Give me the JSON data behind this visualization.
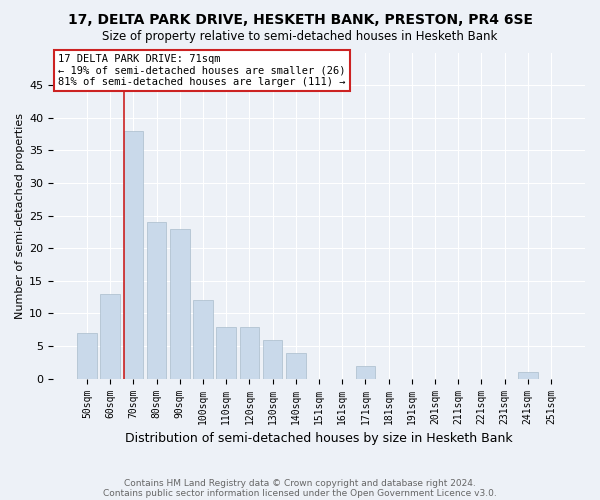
{
  "title": "17, DELTA PARK DRIVE, HESKETH BANK, PRESTON, PR4 6SE",
  "subtitle": "Size of property relative to semi-detached houses in Hesketh Bank",
  "xlabel": "Distribution of semi-detached houses by size in Hesketh Bank",
  "ylabel": "Number of semi-detached properties",
  "footnote1": "Contains HM Land Registry data © Crown copyright and database right 2024.",
  "footnote2": "Contains public sector information licensed under the Open Government Licence v3.0.",
  "bar_labels": [
    "50sqm",
    "60sqm",
    "70sqm",
    "80sqm",
    "90sqm",
    "100sqm",
    "110sqm",
    "120sqm",
    "130sqm",
    "140sqm",
    "151sqm",
    "161sqm",
    "171sqm",
    "181sqm",
    "191sqm",
    "201sqm",
    "211sqm",
    "221sqm",
    "231sqm",
    "241sqm",
    "251sqm"
  ],
  "bar_values": [
    7,
    13,
    38,
    24,
    23,
    12,
    8,
    8,
    6,
    4,
    0,
    0,
    2,
    0,
    0,
    0,
    0,
    0,
    0,
    1,
    0
  ],
  "bar_color": "#c9d9ea",
  "bar_edge_color": "#aabdcc",
  "background_color": "#edf1f7",
  "grid_color": "#ffffff",
  "annotation_box_color": "#ffffff",
  "annotation_box_edge": "#cc2222",
  "annotation_line_color": "#cc2222",
  "property_bin_index": 2,
  "annotation_title": "17 DELTA PARK DRIVE: 71sqm",
  "annotation_line1": "← 19% of semi-detached houses are smaller (26)",
  "annotation_line2": "81% of semi-detached houses are larger (111) →",
  "ylim": [
    0,
    50
  ],
  "yticks": [
    0,
    5,
    10,
    15,
    20,
    25,
    30,
    35,
    40,
    45
  ]
}
